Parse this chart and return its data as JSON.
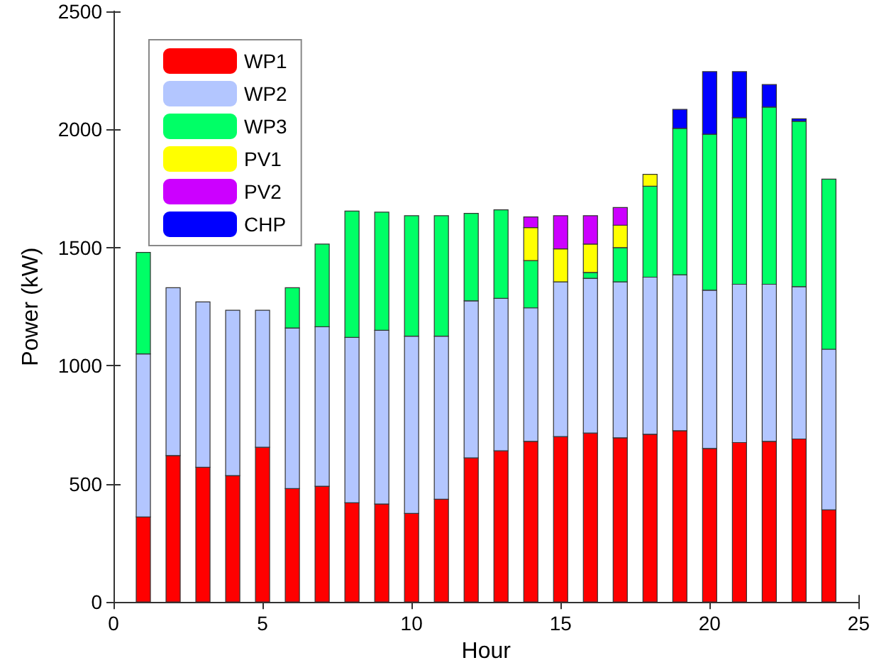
{
  "chart_data": {
    "type": "bar",
    "stacked": true,
    "xlabel": "Hour",
    "ylabel": "Power (kW)",
    "x": [
      1,
      2,
      3,
      4,
      5,
      6,
      7,
      8,
      9,
      10,
      11,
      12,
      13,
      14,
      15,
      16,
      17,
      18,
      19,
      20,
      21,
      22,
      23,
      24
    ],
    "xlim": [
      0,
      25
    ],
    "xticks": [
      0,
      5,
      10,
      15,
      20,
      25
    ],
    "ylim": [
      0,
      2500
    ],
    "yticks": [
      0,
      500,
      1000,
      1500,
      2000,
      2500
    ],
    "grid": false,
    "legend": "top left",
    "series": [
      {
        "name": "WP1",
        "color": "#ff0000",
        "values": [
          360,
          620,
          570,
          535,
          655,
          480,
          490,
          420,
          415,
          375,
          435,
          610,
          640,
          680,
          700,
          715,
          695,
          710,
          725,
          650,
          675,
          680,
          690,
          390
        ]
      },
      {
        "name": "WP2",
        "color": "#b3c6ff",
        "values": [
          690,
          710,
          700,
          700,
          580,
          680,
          675,
          700,
          735,
          750,
          690,
          665,
          645,
          565,
          655,
          655,
          660,
          665,
          660,
          670,
          670,
          665,
          645,
          680
        ]
      },
      {
        "name": "WP3",
        "color": "#00ff66",
        "values": [
          430,
          0,
          0,
          0,
          0,
          170,
          350,
          535,
          500,
          510,
          510,
          370,
          375,
          200,
          0,
          25,
          145,
          385,
          620,
          660,
          705,
          750,
          700,
          720
        ]
      },
      {
        "name": "PV1",
        "color": "#ffff00",
        "values": [
          0,
          0,
          0,
          0,
          0,
          0,
          0,
          0,
          0,
          0,
          0,
          0,
          0,
          140,
          140,
          120,
          95,
          50,
          0,
          0,
          0,
          0,
          0,
          0
        ]
      },
      {
        "name": "PV2",
        "color": "#cc00ff",
        "values": [
          0,
          0,
          0,
          0,
          0,
          0,
          0,
          0,
          0,
          0,
          0,
          0,
          0,
          45,
          140,
          120,
          75,
          0,
          0,
          0,
          0,
          0,
          0,
          0
        ]
      },
      {
        "name": "CHP",
        "color": "#0000ff",
        "values": [
          0,
          0,
          0,
          0,
          0,
          0,
          0,
          0,
          0,
          0,
          0,
          0,
          0,
          0,
          0,
          0,
          0,
          0,
          80,
          265,
          195,
          95,
          10,
          0
        ]
      }
    ]
  }
}
